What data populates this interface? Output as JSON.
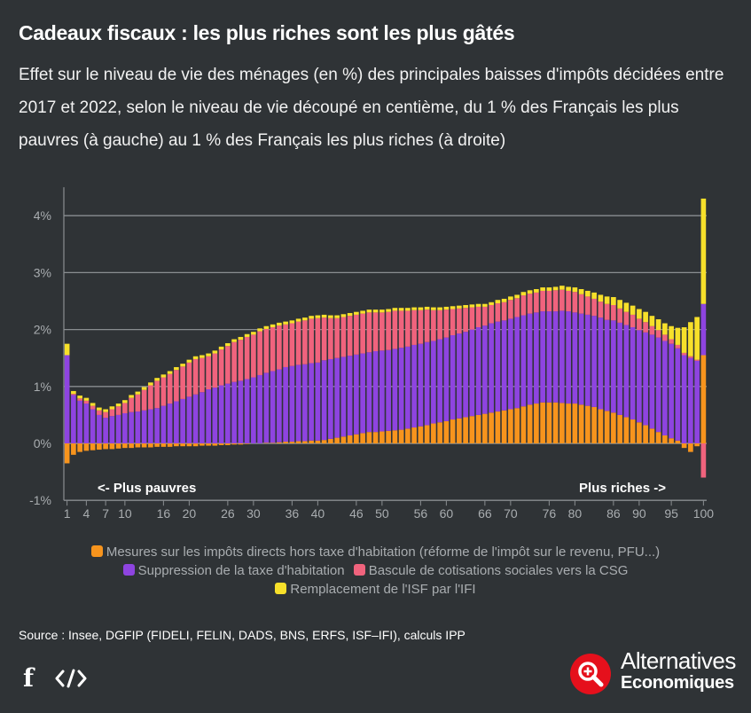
{
  "header": {
    "title": "Cadeaux fiscaux : les plus riches sont les plus gâtés",
    "subtitle": "Effet sur le niveau de vie des ménages (en %) des principales baisses d'impôts décidées entre 2017 et 2022, selon le niveau de vie découpé en centième, du 1 % des Français les plus pauvres (à gauche) au 1 % des Français les plus riches (à droite)"
  },
  "colors": {
    "ir": "#f7941d",
    "th": "#8e44e0",
    "csg": "#f0637d",
    "isf": "#f7e02a",
    "background": "#2f3336",
    "grid": "#8a8e91",
    "axis_text": "#a9adb0"
  },
  "chart_data": {
    "type": "bar",
    "stacked": true,
    "title": "Cadeaux fiscaux : les plus riches sont les plus gâtés",
    "xlabel": "",
    "ylabel": "",
    "ylim": [
      -1,
      4.5
    ],
    "yticks": [
      -1,
      0,
      1,
      2,
      3,
      4
    ],
    "ytick_labels": [
      "-1%",
      "0%",
      "1%",
      "2%",
      "3%",
      "4%"
    ],
    "xticks": [
      1,
      4,
      7,
      10,
      16,
      20,
      26,
      30,
      36,
      40,
      46,
      50,
      56,
      60,
      66,
      70,
      76,
      80,
      86,
      90,
      95,
      100
    ],
    "x_range": [
      1,
      100
    ],
    "annotations": [
      {
        "text": "<- Plus pauvres",
        "position": "bottom-left"
      },
      {
        "text": "Plus riches ->",
        "position": "bottom-right"
      }
    ],
    "series": [
      {
        "name": "Mesures sur les impôts directs hors taxe d'habitation (réforme de l'impôt sur le revenu, PFU...)",
        "color_key": "ir",
        "values": [
          -0.35,
          -0.2,
          -0.15,
          -0.13,
          -0.12,
          -0.11,
          -0.1,
          -0.1,
          -0.09,
          -0.08,
          -0.08,
          -0.07,
          -0.07,
          -0.07,
          -0.06,
          -0.06,
          -0.06,
          -0.05,
          -0.05,
          -0.05,
          -0.05,
          -0.04,
          -0.04,
          -0.04,
          -0.03,
          -0.03,
          -0.02,
          -0.02,
          -0.01,
          0.0,
          0.0,
          0.01,
          0.01,
          0.02,
          0.03,
          0.03,
          0.04,
          0.04,
          0.05,
          0.05,
          0.06,
          0.08,
          0.1,
          0.12,
          0.14,
          0.16,
          0.18,
          0.2,
          0.2,
          0.21,
          0.22,
          0.23,
          0.24,
          0.26,
          0.28,
          0.3,
          0.32,
          0.35,
          0.37,
          0.39,
          0.42,
          0.44,
          0.46,
          0.48,
          0.5,
          0.52,
          0.54,
          0.56,
          0.58,
          0.6,
          0.62,
          0.65,
          0.68,
          0.7,
          0.72,
          0.72,
          0.72,
          0.71,
          0.7,
          0.7,
          0.68,
          0.66,
          0.64,
          0.6,
          0.57,
          0.54,
          0.5,
          0.46,
          0.42,
          0.37,
          0.32,
          0.26,
          0.2,
          0.14,
          0.09,
          0.05,
          -0.08,
          -0.15,
          -0.05,
          1.55
        ]
      },
      {
        "name": "Suppression de la taxe d'habitation",
        "color_key": "th",
        "values": [
          1.55,
          0.85,
          0.75,
          0.7,
          0.6,
          0.5,
          0.45,
          0.48,
          0.5,
          0.53,
          0.55,
          0.56,
          0.58,
          0.6,
          0.62,
          0.66,
          0.7,
          0.74,
          0.78,
          0.82,
          0.86,
          0.9,
          0.95,
          0.98,
          1.02,
          1.05,
          1.08,
          1.1,
          1.13,
          1.16,
          1.2,
          1.23,
          1.26,
          1.28,
          1.31,
          1.33,
          1.34,
          1.35,
          1.36,
          1.37,
          1.4,
          1.4,
          1.4,
          1.4,
          1.4,
          1.4,
          1.4,
          1.4,
          1.42,
          1.42,
          1.42,
          1.43,
          1.44,
          1.44,
          1.45,
          1.45,
          1.46,
          1.45,
          1.46,
          1.47,
          1.48,
          1.49,
          1.5,
          1.52,
          1.54,
          1.55,
          1.57,
          1.58,
          1.58,
          1.59,
          1.6,
          1.6,
          1.6,
          1.6,
          1.6,
          1.6,
          1.6,
          1.62,
          1.62,
          1.6,
          1.6,
          1.6,
          1.6,
          1.61,
          1.6,
          1.62,
          1.62,
          1.62,
          1.62,
          1.62,
          1.63,
          1.65,
          1.66,
          1.66,
          1.66,
          1.62,
          1.55,
          1.5,
          1.45,
          0.9
        ]
      },
      {
        "name": "Bascule de cotisations sociales vers la CSG",
        "color_key": "csg",
        "values": [
          0.0,
          0.02,
          0.04,
          0.05,
          0.06,
          0.08,
          0.1,
          0.12,
          0.15,
          0.18,
          0.25,
          0.3,
          0.36,
          0.42,
          0.48,
          0.5,
          0.52,
          0.55,
          0.57,
          0.6,
          0.62,
          0.6,
          0.58,
          0.6,
          0.63,
          0.66,
          0.7,
          0.72,
          0.74,
          0.75,
          0.77,
          0.77,
          0.77,
          0.77,
          0.75,
          0.75,
          0.76,
          0.77,
          0.78,
          0.78,
          0.75,
          0.72,
          0.7,
          0.7,
          0.7,
          0.7,
          0.7,
          0.7,
          0.68,
          0.67,
          0.67,
          0.67,
          0.65,
          0.63,
          0.61,
          0.59,
          0.57,
          0.54,
          0.51,
          0.49,
          0.46,
          0.44,
          0.42,
          0.39,
          0.36,
          0.33,
          0.32,
          0.32,
          0.32,
          0.33,
          0.33,
          0.35,
          0.35,
          0.35,
          0.36,
          0.36,
          0.37,
          0.37,
          0.36,
          0.36,
          0.34,
          0.32,
          0.3,
          0.28,
          0.28,
          0.27,
          0.25,
          0.23,
          0.22,
          0.2,
          0.18,
          0.15,
          0.13,
          0.11,
          0.08,
          0.06,
          0.04,
          0.03,
          0.02,
          -0.6
        ]
      },
      {
        "name": "Remplacement de l'ISF par l'IFI",
        "color_key": "isf",
        "values": [
          0.2,
          0.05,
          0.05,
          0.05,
          0.05,
          0.05,
          0.05,
          0.05,
          0.05,
          0.05,
          0.05,
          0.05,
          0.05,
          0.05,
          0.05,
          0.05,
          0.05,
          0.05,
          0.05,
          0.05,
          0.05,
          0.05,
          0.05,
          0.05,
          0.05,
          0.05,
          0.05,
          0.05,
          0.05,
          0.05,
          0.05,
          0.05,
          0.05,
          0.05,
          0.05,
          0.05,
          0.05,
          0.05,
          0.05,
          0.05,
          0.05,
          0.05,
          0.05,
          0.05,
          0.05,
          0.05,
          0.05,
          0.05,
          0.05,
          0.05,
          0.05,
          0.05,
          0.05,
          0.05,
          0.05,
          0.05,
          0.05,
          0.05,
          0.05,
          0.05,
          0.05,
          0.05,
          0.05,
          0.05,
          0.05,
          0.05,
          0.05,
          0.06,
          0.06,
          0.06,
          0.06,
          0.06,
          0.06,
          0.06,
          0.06,
          0.06,
          0.06,
          0.07,
          0.07,
          0.08,
          0.09,
          0.1,
          0.11,
          0.12,
          0.13,
          0.14,
          0.15,
          0.16,
          0.16,
          0.17,
          0.18,
          0.18,
          0.19,
          0.2,
          0.23,
          0.3,
          0.45,
          0.6,
          0.75,
          1.85
        ]
      }
    ]
  },
  "legend": [
    {
      "label": "Mesures sur les impôts directs hors taxe d'habitation (réforme de l'impôt sur le revenu, PFU...)",
      "color": "#f7941d"
    },
    {
      "label": "Suppression de la taxe d'habitation",
      "color": "#8e44e0"
    },
    {
      "label": "Bascule de cotisations sociales vers la CSG",
      "color": "#f0637d"
    },
    {
      "label": "Remplacement de l'ISF par l'IFI",
      "color": "#f7e02a"
    }
  ],
  "footer": {
    "source": "Source : Insee, DGFIP (FIDELI, FELIN, DADS, BNS, ERFS, ISF–IFI), calculs IPP",
    "facebook_icon": "facebook-icon",
    "embed_icon": "code-icon",
    "logo_line1": "Alternatives",
    "logo_line2": "Economiques"
  }
}
